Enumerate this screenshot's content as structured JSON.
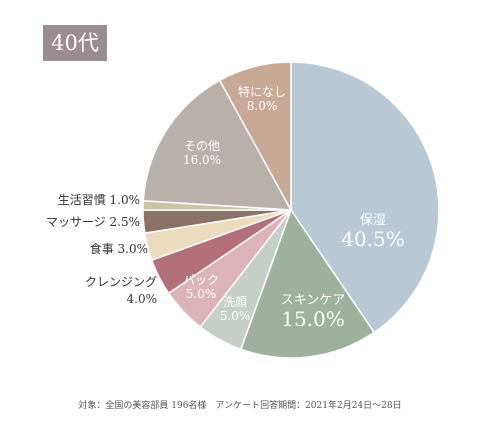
{
  "badge": {
    "label": "40代",
    "color": "#9a8d92"
  },
  "chart_data": {
    "type": "pie",
    "title": "",
    "slices": [
      {
        "label": "保湿",
        "percent": "40.5%",
        "value": 40.5,
        "color": "#b8c8d5"
      },
      {
        "label": "スキンケア",
        "percent": "15.0%",
        "value": 15.0,
        "color": "#9db19d"
      },
      {
        "label": "洗顔",
        "percent": "5.0%",
        "value": 5.0,
        "color": "#c5cfc8"
      },
      {
        "label": "パック",
        "percent": "5.0%",
        "value": 5.0,
        "color": "#dbb3b8"
      },
      {
        "label": "クレンジング",
        "percent": "4.0%",
        "value": 4.0,
        "color": "#b3707b"
      },
      {
        "label": "食事",
        "percent": "3.0%",
        "value": 3.0,
        "color": "#ecdcbd"
      },
      {
        "label": "マッサージ",
        "percent": "2.5%",
        "value": 2.5,
        "color": "#8a7268"
      },
      {
        "label": "生活習慣",
        "percent": "1.0%",
        "value": 1.0,
        "color": "#c9c6a6"
      },
      {
        "label": "その他",
        "percent": "16.0%",
        "value": 16.0,
        "color": "#b7b0ab"
      },
      {
        "label": "特になし",
        "percent": "8.0%",
        "value": 8.0,
        "color": "#c7a996"
      }
    ]
  },
  "footnote": "対象：全国の美容部員 196名様　アンケート回答期間：2021年2月24日〜28日"
}
